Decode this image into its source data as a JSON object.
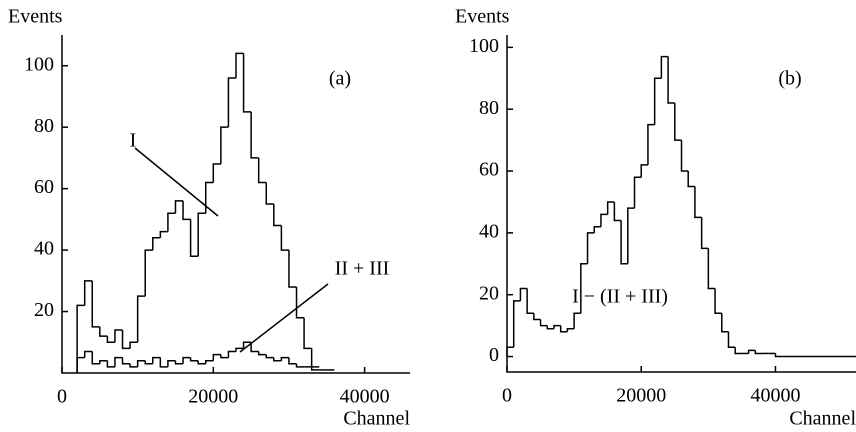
{
  "chart_data": [
    {
      "type": "histogram",
      "panel_label": "(a)",
      "y_label": "Events",
      "x_label": "Channel",
      "xlim": [
        0,
        46000
      ],
      "xticks": [
        0,
        20000,
        40000
      ],
      "ylim": [
        0,
        110
      ],
      "yticks": [
        20,
        40,
        60,
        80,
        100
      ],
      "series": [
        {
          "name": "I",
          "color": "#000000",
          "bins": [
            2000,
            3000,
            4000,
            5000,
            6000,
            7000,
            8000,
            9000,
            10000,
            11000,
            12000,
            13000,
            14000,
            15000,
            16000,
            17000,
            18000,
            19000,
            20000,
            21000,
            22000,
            23000,
            24000,
            25000,
            26000,
            27000,
            28000,
            29000,
            30000,
            31000,
            32000,
            33000,
            34000
          ],
          "values": [
            22,
            30,
            15,
            12,
            10,
            14,
            8,
            10,
            25,
            40,
            44,
            46,
            52,
            56,
            50,
            38,
            52,
            62,
            68,
            80,
            96,
            104,
            85,
            70,
            62,
            55,
            48,
            40,
            28,
            18,
            8,
            2
          ]
        },
        {
          "name": "II + III",
          "color": "#000000",
          "bins": [
            2000,
            3000,
            4000,
            5000,
            6000,
            7000,
            8000,
            9000,
            10000,
            11000,
            12000,
            13000,
            14000,
            15000,
            16000,
            17000,
            18000,
            19000,
            20000,
            21000,
            22000,
            23000,
            24000,
            25000,
            26000,
            27000,
            28000,
            29000,
            30000,
            31000,
            32000,
            33000,
            34000,
            35000,
            36000
          ],
          "values": [
            5,
            7,
            3,
            4,
            2,
            5,
            3,
            2,
            4,
            3,
            5,
            2,
            4,
            3,
            5,
            4,
            3,
            4,
            6,
            5,
            7,
            8,
            10,
            7,
            6,
            5,
            4,
            5,
            3,
            2,
            2,
            1,
            1,
            1
          ]
        }
      ]
    },
    {
      "type": "histogram",
      "panel_label": "(b)",
      "y_label": "Events",
      "x_label": "Channel",
      "xlim": [
        0,
        52000
      ],
      "xticks": [
        0,
        20000,
        40000
      ],
      "ylim": [
        -5,
        104
      ],
      "yticks": [
        0,
        20,
        40,
        60,
        80,
        100
      ],
      "series": [
        {
          "name": "I − (II + III)",
          "color": "#000000",
          "bins": [
            0,
            1000,
            2000,
            3000,
            4000,
            5000,
            6000,
            7000,
            8000,
            9000,
            10000,
            11000,
            12000,
            13000,
            14000,
            15000,
            16000,
            17000,
            18000,
            19000,
            20000,
            21000,
            22000,
            23000,
            24000,
            25000,
            26000,
            27000,
            28000,
            29000,
            30000,
            31000,
            32000,
            33000,
            34000,
            35000,
            36000,
            37000,
            38000,
            39000,
            40000,
            41000,
            52000
          ],
          "values": [
            3,
            18,
            22,
            14,
            12,
            10,
            9,
            10,
            8,
            9,
            14,
            30,
            40,
            42,
            46,
            50,
            44,
            30,
            48,
            58,
            62,
            75,
            90,
            97,
            82,
            70,
            60,
            55,
            45,
            35,
            22,
            14,
            8,
            3,
            1,
            1,
            2,
            1,
            1,
            1,
            0,
            0
          ]
        }
      ]
    }
  ]
}
